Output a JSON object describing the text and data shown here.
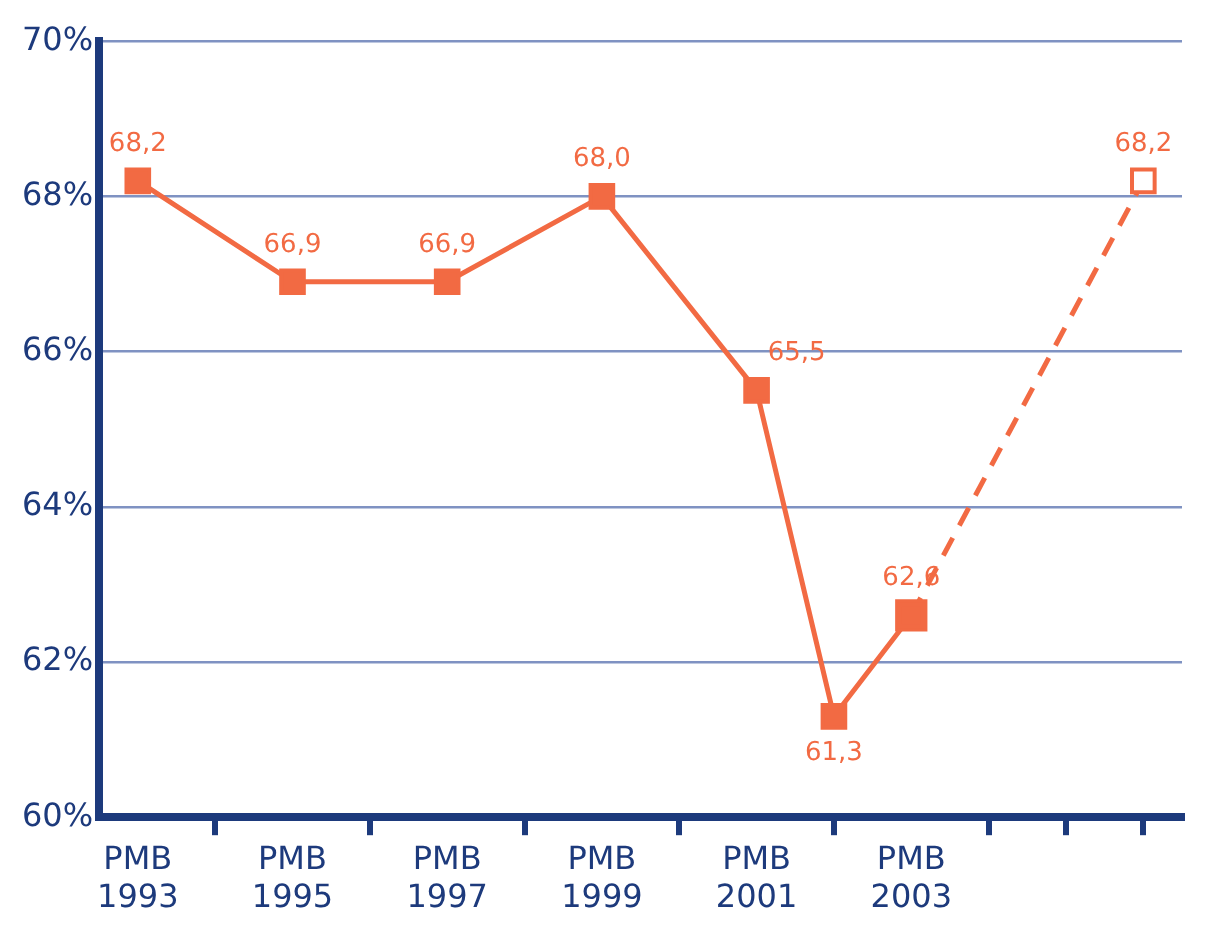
{
  "chart_data": {
    "type": "line",
    "categories": [
      "PMB 1993",
      null,
      "PMB 1995",
      null,
      "PMB 1997",
      null,
      "PMB 1999",
      null,
      "PMB 2001",
      null,
      "PMB 2003",
      null,
      null,
      null
    ],
    "ylim": [
      60,
      70
    ],
    "yticks": [
      {
        "value": 60,
        "label": "60%"
      },
      {
        "value": 62,
        "label": "62%"
      },
      {
        "value": 64,
        "label": "64%"
      },
      {
        "value": 66,
        "label": "66%"
      },
      {
        "value": 68,
        "label": "68%"
      },
      {
        "value": 70,
        "label": "70%"
      }
    ],
    "grid": "y",
    "legend": false,
    "marker": "square",
    "series": [
      {
        "color": "#f26a43",
        "values": [
          68.2,
          null,
          66.9,
          null,
          66.9,
          null,
          68.0,
          null,
          65.5,
          61.3,
          62.6,
          null,
          null,
          null
        ],
        "value_labels": [
          "68,2",
          null,
          "66,9",
          null,
          "66,9",
          null,
          "68,0",
          null,
          "65,5",
          "61,3",
          "62,6",
          null,
          null,
          null
        ],
        "line_style": "solid"
      },
      {
        "color": "#f26a43",
        "values": [
          null,
          null,
          null,
          null,
          null,
          null,
          null,
          null,
          null,
          null,
          62.6,
          null,
          null,
          68.2
        ],
        "value_labels": [
          null,
          null,
          null,
          null,
          null,
          null,
          null,
          null,
          null,
          null,
          null,
          null,
          null,
          "68,2"
        ],
        "line_style": "dashed"
      }
    ]
  }
}
